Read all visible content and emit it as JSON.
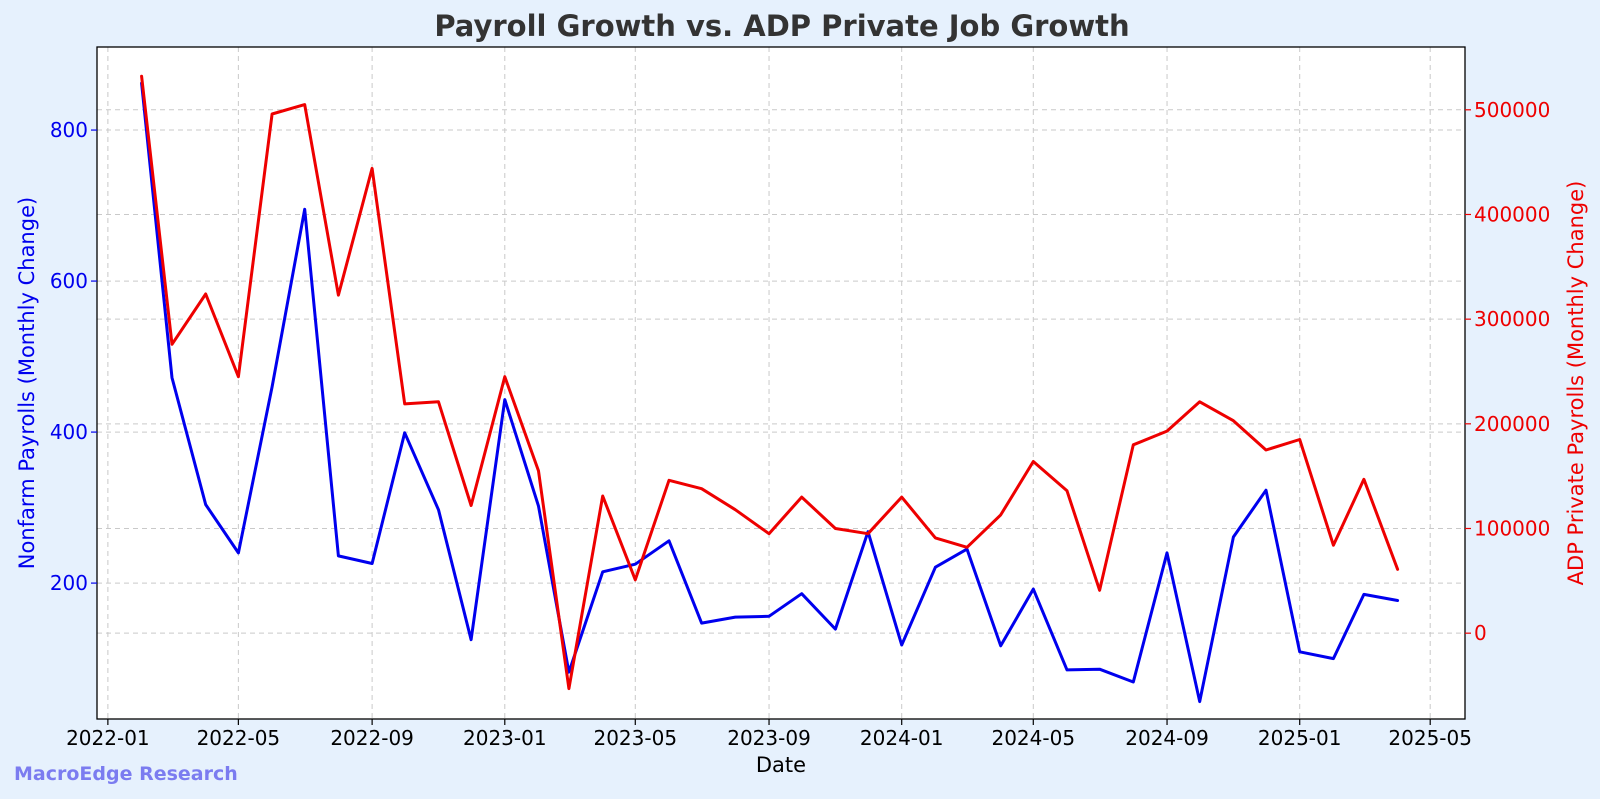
{
  "watermark": "MacroEdge Research",
  "colors": {
    "background": "#e6f1fd",
    "plot_bg": "#ffffff",
    "left_series": "#0000ee",
    "right_series": "#ee0000",
    "title": "#333333",
    "watermark": "#7b7cf0"
  },
  "chart_data": {
    "type": "line",
    "title": "Payroll Growth vs. ADP Private Job Growth",
    "xlabel": "Date",
    "ylabel_left": "Nonfarm Payrolls (Monthly Change)",
    "ylabel_right": "ADP Private Payrolls (Monthly Change)",
    "grid": true,
    "x_ticks": [
      "2022-01",
      "2022-05",
      "2022-09",
      "2023-01",
      "2023-05",
      "2023-09",
      "2024-01",
      "2024-05",
      "2024-09",
      "2025-01",
      "2025-05"
    ],
    "y_left_ticks": [
      200,
      400,
      600,
      800
    ],
    "y_right_ticks": [
      0,
      100000,
      200000,
      300000,
      400000,
      500000
    ],
    "xlim": [
      "2021-12-22",
      "2025-06-02"
    ],
    "ylim_left": [
      20,
      910
    ],
    "ylim_right": [
      -82000,
      560000
    ],
    "x": [
      "2022-02-01",
      "2022-03-01",
      "2022-04-01",
      "2022-05-01",
      "2022-06-01",
      "2022-07-01",
      "2022-08-01",
      "2022-09-01",
      "2022-10-01",
      "2022-11-01",
      "2022-12-01",
      "2023-01-01",
      "2023-02-01",
      "2023-03-01",
      "2023-04-01",
      "2023-05-01",
      "2023-06-01",
      "2023-07-01",
      "2023-08-01",
      "2023-09-01",
      "2023-10-01",
      "2023-11-01",
      "2023-12-01",
      "2024-01-01",
      "2024-02-01",
      "2024-03-01",
      "2024-04-01",
      "2024-05-01",
      "2024-06-01",
      "2024-07-01",
      "2024-08-01",
      "2024-09-01",
      "2024-10-01",
      "2024-11-01",
      "2024-12-01",
      "2025-01-01",
      "2025-02-01",
      "2025-03-01",
      "2025-04-01"
    ],
    "series": [
      {
        "name": "Nonfarm Payrolls",
        "axis": "left",
        "color": "#0000ee",
        "values": [
          862,
          472,
          304,
          240,
          460,
          695,
          236,
          226,
          399,
          297,
          125,
          443,
          302,
          82,
          215,
          225,
          256,
          147,
          155,
          156,
          186,
          139,
          268,
          118,
          221,
          245,
          117,
          192,
          85,
          86,
          69,
          240,
          43,
          261,
          323,
          109,
          100,
          185,
          177
        ]
      },
      {
        "name": "ADP Private Payrolls",
        "axis": "right",
        "color": "#ee0000",
        "values": [
          532000,
          276000,
          324000,
          245000,
          496000,
          505000,
          323000,
          444000,
          219000,
          221000,
          122000,
          245000,
          155000,
          -53000,
          131000,
          51000,
          146000,
          138000,
          118000,
          95000,
          130000,
          100000,
          95000,
          130000,
          91000,
          82000,
          113000,
          164000,
          136000,
          41000,
          180000,
          193000,
          221000,
          203000,
          175000,
          185000,
          84000,
          147000,
          61000
        ]
      }
    ]
  }
}
